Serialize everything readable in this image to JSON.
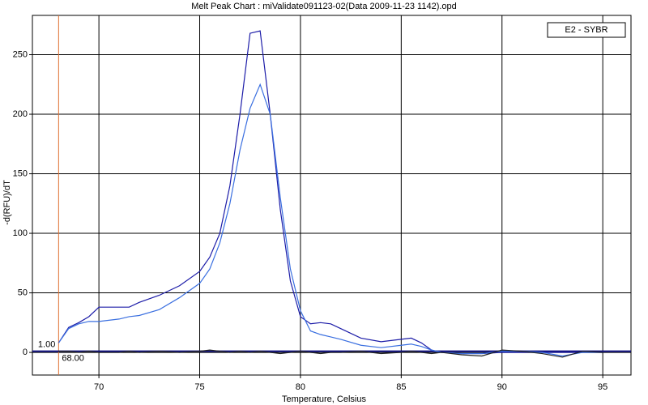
{
  "chart_data": {
    "type": "line",
    "title": "Melt Peak Chart : miValidate091123-02(Data 2009-11-23 1142).opd",
    "x_label": "Temperature, Celsius",
    "y_label": "-d(RFU)/dT",
    "legend": "E2 - SYBR",
    "x": [
      68,
      68.5,
      69,
      69.5,
      70,
      71,
      71.5,
      72,
      73,
      74,
      75,
      75.5,
      76,
      76.5,
      77,
      77.5,
      78,
      78.5,
      79,
      79.5,
      80,
      80.5,
      81,
      81.5,
      82,
      83,
      84,
      85,
      85.5,
      86,
      86.5,
      87,
      88,
      89,
      90,
      91,
      92,
      93,
      94,
      95
    ],
    "series": [
      {
        "color": "#1c1ca8",
        "values": [
          8,
          21,
          25,
          30,
          38,
          38,
          38,
          42,
          48,
          56,
          68,
          80,
          100,
          140,
          200,
          268,
          270,
          200,
          120,
          60,
          30,
          24,
          25,
          24,
          20,
          12,
          9,
          11,
          12,
          8,
          2,
          0,
          -1,
          -1,
          0,
          0,
          0,
          0,
          0,
          0
        ]
      },
      {
        "color": "#3a6fe0",
        "values": [
          8,
          20,
          24,
          26,
          26,
          28,
          30,
          31,
          36,
          46,
          58,
          70,
          92,
          125,
          170,
          205,
          225,
          200,
          130,
          70,
          35,
          18,
          15,
          13,
          11,
          6,
          4,
          6,
          7,
          5,
          2,
          0,
          -1,
          -1,
          1,
          1,
          0,
          -3,
          0,
          0
        ]
      },
      {
        "color": "#222222",
        "values": [
          1,
          1,
          0,
          1,
          0,
          0,
          1,
          0,
          1,
          0,
          1,
          2,
          1,
          0,
          1,
          0,
          1,
          0,
          -1,
          0,
          1,
          0,
          -1,
          0,
          0,
          1,
          -1,
          0,
          1,
          0,
          -1,
          0,
          -2,
          -3,
          2,
          1,
          -1,
          -4,
          1,
          0
        ]
      }
    ],
    "threshold": {
      "value": 1,
      "label": "1.00"
    },
    "cursor": {
      "value": 68,
      "label": "68.00"
    },
    "xlim": [
      66.7,
      96.4
    ],
    "ylim": [
      -19,
      283
    ],
    "xticks": [
      70,
      75,
      80,
      85,
      90,
      95
    ],
    "yticks": [
      0,
      50,
      100,
      150,
      200,
      250
    ],
    "grid": true
  }
}
